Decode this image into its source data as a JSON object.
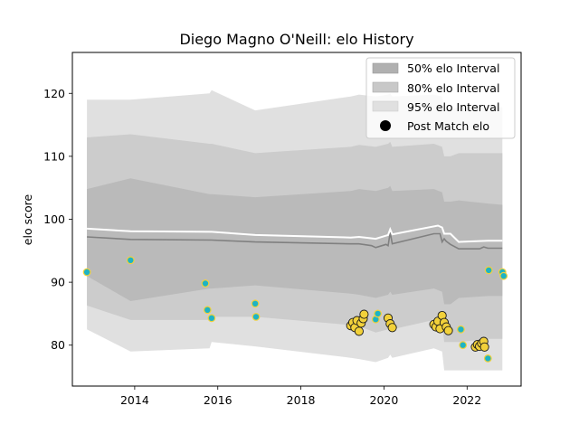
{
  "chart_data": {
    "type": "line",
    "title": "Diego Magno O'Neill: elo History",
    "xlabel": "",
    "ylabel": "elo score",
    "xlim": [
      2012.5,
      2023.3
    ],
    "ylim": [
      73.5,
      126.5
    ],
    "xticks": [
      2014,
      2016,
      2018,
      2020,
      2022
    ],
    "yticks": [
      80,
      90,
      100,
      110,
      120
    ],
    "grid": false,
    "legend": {
      "placement": "top-right",
      "entries": [
        {
          "label": "50% elo Interval",
          "color": "#b0b0b0"
        },
        {
          "label": "80% elo Interval",
          "color": "#c8c8c8"
        },
        {
          "label": "95% elo Interval",
          "color": "#e0e0e0"
        },
        {
          "label": "Post Match elo",
          "color": "#000000"
        }
      ]
    },
    "bands": {
      "x": [
        2012.85,
        2013.9,
        2015.8,
        2015.85,
        2016.9,
        2019.2,
        2019.4,
        2019.8,
        2020.1,
        2020.15,
        2020.2,
        2021.2,
        2021.4,
        2021.45,
        2021.6,
        2021.8,
        2022.5,
        2022.85
      ],
      "p95_upper": [
        119.0,
        119.0,
        120.0,
        120.5,
        117.3,
        119.5,
        119.8,
        119.5,
        119.8,
        120.0,
        119.5,
        119.8,
        119.5,
        117.5,
        117.5,
        117.8,
        117.8,
        117.8
      ],
      "p80_upper": [
        113.0,
        113.5,
        112.0,
        112.0,
        110.5,
        111.5,
        111.8,
        111.5,
        112.0,
        112.3,
        111.5,
        112.0,
        111.5,
        110.0,
        110.0,
        110.5,
        110.5,
        110.5
      ],
      "p50_upper": [
        104.8,
        106.5,
        104.0,
        104.0,
        103.5,
        104.5,
        104.8,
        104.5,
        105.0,
        105.3,
        104.5,
        104.8,
        104.3,
        102.8,
        102.8,
        103.0,
        102.5,
        102.3
      ],
      "p50_lower": [
        91.0,
        87.0,
        89.0,
        89.0,
        89.5,
        88.2,
        88.0,
        87.5,
        88.0,
        88.5,
        88.0,
        89.0,
        88.5,
        86.5,
        86.5,
        87.5,
        87.8,
        87.8
      ],
      "p80_lower": [
        86.3,
        84.0,
        84.0,
        84.5,
        84.5,
        83.2,
        83.0,
        82.0,
        82.5,
        83.0,
        82.5,
        84.0,
        83.5,
        80.5,
        80.5,
        80.5,
        81.0,
        81.0
      ],
      "p95_lower": [
        82.5,
        79.0,
        79.5,
        80.5,
        79.8,
        78.0,
        77.8,
        77.3,
        78.0,
        78.5,
        78.0,
        79.5,
        79.0,
        76.0,
        76.0,
        76.0,
        76.0,
        76.0
      ]
    },
    "mean_line": {
      "x": [
        2012.85,
        2013.9,
        2015.85,
        2016.9,
        2019.2,
        2019.4,
        2019.8,
        2020.0,
        2020.1,
        2020.15,
        2020.2,
        2021.3,
        2021.4,
        2021.45,
        2021.6,
        2021.8,
        2022.5,
        2022.85
      ],
      "y": [
        98.5,
        98.1,
        98.0,
        97.5,
        97.1,
        97.2,
        96.9,
        97.3,
        97.5,
        98.4,
        97.6,
        99.0,
        98.7,
        97.7,
        97.7,
        96.4,
        96.6,
        96.6
      ]
    },
    "median_line": {
      "x": [
        2012.85,
        2013.9,
        2015.85,
        2016.9,
        2019.2,
        2019.4,
        2019.7,
        2019.8,
        2020.05,
        2020.1,
        2020.15,
        2020.2,
        2021.2,
        2021.35,
        2021.4,
        2021.45,
        2021.5,
        2021.6,
        2021.8,
        2022.3,
        2022.4,
        2022.5,
        2022.85
      ],
      "y": [
        97.2,
        96.8,
        96.7,
        96.4,
        96.1,
        96.1,
        95.8,
        95.5,
        96.0,
        95.8,
        97.9,
        96.1,
        97.7,
        97.7,
        96.4,
        96.9,
        96.5,
        96.0,
        95.3,
        95.3,
        95.6,
        95.4,
        95.4
      ]
    },
    "post_match": [
      {
        "x": 2012.85,
        "y": 91.6,
        "style": "teal"
      },
      {
        "x": 2013.9,
        "y": 93.5,
        "style": "teal"
      },
      {
        "x": 2015.7,
        "y": 89.8,
        "style": "teal"
      },
      {
        "x": 2015.75,
        "y": 85.6,
        "style": "teal"
      },
      {
        "x": 2015.85,
        "y": 84.3,
        "style": "teal"
      },
      {
        "x": 2016.9,
        "y": 86.6,
        "style": "teal"
      },
      {
        "x": 2016.92,
        "y": 84.5,
        "style": "teal"
      },
      {
        "x": 2019.2,
        "y": 83.1,
        "style": "gold"
      },
      {
        "x": 2019.25,
        "y": 83.6,
        "style": "gold"
      },
      {
        "x": 2019.3,
        "y": 82.8,
        "style": "gold"
      },
      {
        "x": 2019.35,
        "y": 83.9,
        "style": "gold"
      },
      {
        "x": 2019.4,
        "y": 82.2,
        "style": "gold"
      },
      {
        "x": 2019.45,
        "y": 83.5,
        "style": "gold"
      },
      {
        "x": 2019.5,
        "y": 84.2,
        "style": "gold"
      },
      {
        "x": 2019.52,
        "y": 84.9,
        "style": "gold"
      },
      {
        "x": 2019.8,
        "y": 84.1,
        "style": "teal"
      },
      {
        "x": 2019.85,
        "y": 85.0,
        "style": "teal"
      },
      {
        "x": 2020.1,
        "y": 84.3,
        "style": "gold"
      },
      {
        "x": 2020.15,
        "y": 83.4,
        "style": "gold"
      },
      {
        "x": 2020.2,
        "y": 82.8,
        "style": "gold"
      },
      {
        "x": 2021.2,
        "y": 83.3,
        "style": "gold"
      },
      {
        "x": 2021.25,
        "y": 82.9,
        "style": "gold"
      },
      {
        "x": 2021.3,
        "y": 83.8,
        "style": "gold"
      },
      {
        "x": 2021.35,
        "y": 82.6,
        "style": "gold"
      },
      {
        "x": 2021.4,
        "y": 84.7,
        "style": "gold"
      },
      {
        "x": 2021.45,
        "y": 83.6,
        "style": "gold"
      },
      {
        "x": 2021.5,
        "y": 82.9,
        "style": "gold"
      },
      {
        "x": 2021.55,
        "y": 82.3,
        "style": "gold"
      },
      {
        "x": 2021.85,
        "y": 82.5,
        "style": "teal"
      },
      {
        "x": 2021.9,
        "y": 80.0,
        "style": "teal"
      },
      {
        "x": 2022.2,
        "y": 79.7,
        "style": "gold"
      },
      {
        "x": 2022.25,
        "y": 80.1,
        "style": "gold"
      },
      {
        "x": 2022.3,
        "y": 79.8,
        "style": "gold"
      },
      {
        "x": 2022.35,
        "y": 80.3,
        "style": "gold"
      },
      {
        "x": 2022.4,
        "y": 80.6,
        "style": "gold"
      },
      {
        "x": 2022.42,
        "y": 79.7,
        "style": "gold"
      },
      {
        "x": 2022.5,
        "y": 77.9,
        "style": "teal"
      },
      {
        "x": 2022.52,
        "y": 91.9,
        "style": "teal"
      },
      {
        "x": 2022.85,
        "y": 91.6,
        "style": "teal"
      },
      {
        "x": 2022.88,
        "y": 91.0,
        "style": "teal"
      }
    ],
    "colors": {
      "p95": "#e0e0e0",
      "p80": "#cccccc",
      "p50": "#bababa",
      "mean": "#ffffff",
      "median": "#808080",
      "teal_fill": "#1eb3c4",
      "teal_edge": "#f2d13a",
      "gold_fill": "#f2d13a",
      "gold_edge": "#1a1a1a"
    }
  }
}
